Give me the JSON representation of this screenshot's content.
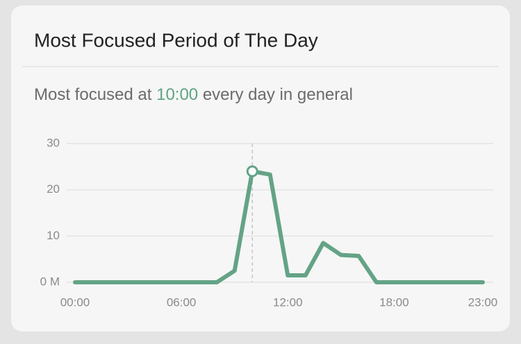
{
  "chart_data": {
    "type": "line",
    "title": "Most Focused Period of The Day",
    "subtitle_prefix": "Most focused at ",
    "subtitle_highlight": "10:00",
    "subtitle_suffix": " every day in general",
    "categories": [
      "00:00",
      null,
      null,
      null,
      null,
      null,
      "06:00",
      null,
      null,
      null,
      null,
      null,
      "12:00",
      null,
      null,
      null,
      null,
      null,
      "18:00",
      null,
      null,
      null,
      null,
      "23:00"
    ],
    "values": [
      0,
      0,
      0,
      0,
      0,
      0,
      0,
      0,
      0,
      2.5,
      24,
      23.3,
      1.5,
      1.5,
      8.5,
      5.9,
      5.7,
      0,
      0,
      0,
      0,
      0,
      0,
      0
    ],
    "color": "#64a386",
    "highlight_color": "#5fa383",
    "highlight_index": 10,
    "ylim": [
      0,
      30
    ],
    "yticks": [
      {
        "value": 0,
        "label": "0 M"
      },
      10,
      20,
      30
    ],
    "grid": true
  }
}
